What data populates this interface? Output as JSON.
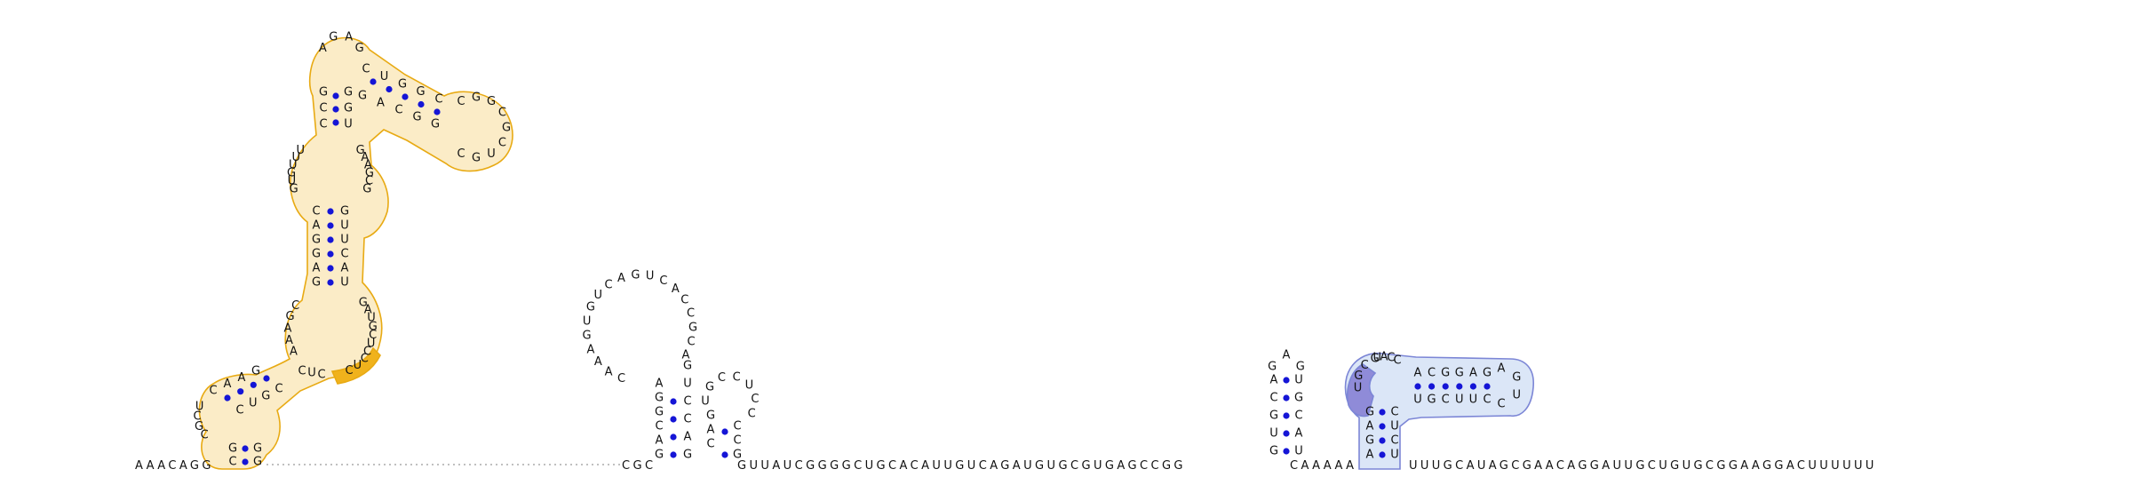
{
  "diagram": {
    "baseline": {
      "segments": [
        {
          "id": "tail-5p",
          "seq": "AAACAGG"
        },
        {
          "id": "linker-1",
          "seq": "CGC"
        },
        {
          "id": "linker-2",
          "seq": "GUUAUCGGGGCUGCACAUUGUCAGAUGUGCGUGAGCCGG"
        },
        {
          "id": "linker-3",
          "seq": "CAAAAA"
        },
        {
          "id": "tail-3p",
          "seq": "UUUGCAUAGCGAACAGGAUUGCUGUGCGGAAGGACUUUUUU"
        }
      ]
    },
    "structures": {
      "stem_left_tall": {
        "upper_hairpin_loop": "AGAG",
        "upper_stem_5p": "CUGGC",
        "upper_stem_3p": "GACGG",
        "upper_loop_tail": "CGGCGCUGC",
        "upper_junction_5p": "GCC",
        "upper_junction_3p": "GGU",
        "mid_loop_5p": "UUUGUG",
        "mid_loop_3p": "GAAGCG",
        "mid_stem_5p": "CAGGAG",
        "mid_stem_3p": "GUUCAU",
        "lower_loop_5p": "AAAGC",
        "lower_loop_3p": "GAUGCUC",
        "lower_stem_5p": "CAAG",
        "lower_stem_3p": "CUGC",
        "base_loop": "UCGC",
        "base_stem_5p": "GC",
        "base_stem_3p": "GG",
        "highlight_solid": "CUC"
      },
      "stem_middle": {
        "loop": "CAAAGUGUCAGUCACCGCA",
        "stem_5p": "AGGCAG",
        "stem_3p": "GUCCAG",
        "side_hairpin_loop": "UGCCUCC",
        "side_stem_5p": "GAC",
        "side_stem_3p": "CCG"
      },
      "stem_right_small": {
        "loop": "GAG",
        "stem_5p": "ACGUG",
        "stem_3p": "UGCAU"
      },
      "stem_right_blue": {
        "loop": "UACC",
        "stem_5p": "ACGGAG",
        "stem_3p": "UGCUUC",
        "hairpin_tip": "AGUC",
        "vertical_5p": "GAGA",
        "vertical_3p": "CUCU",
        "highlight_solid": "UGCG"
      }
    }
  }
}
